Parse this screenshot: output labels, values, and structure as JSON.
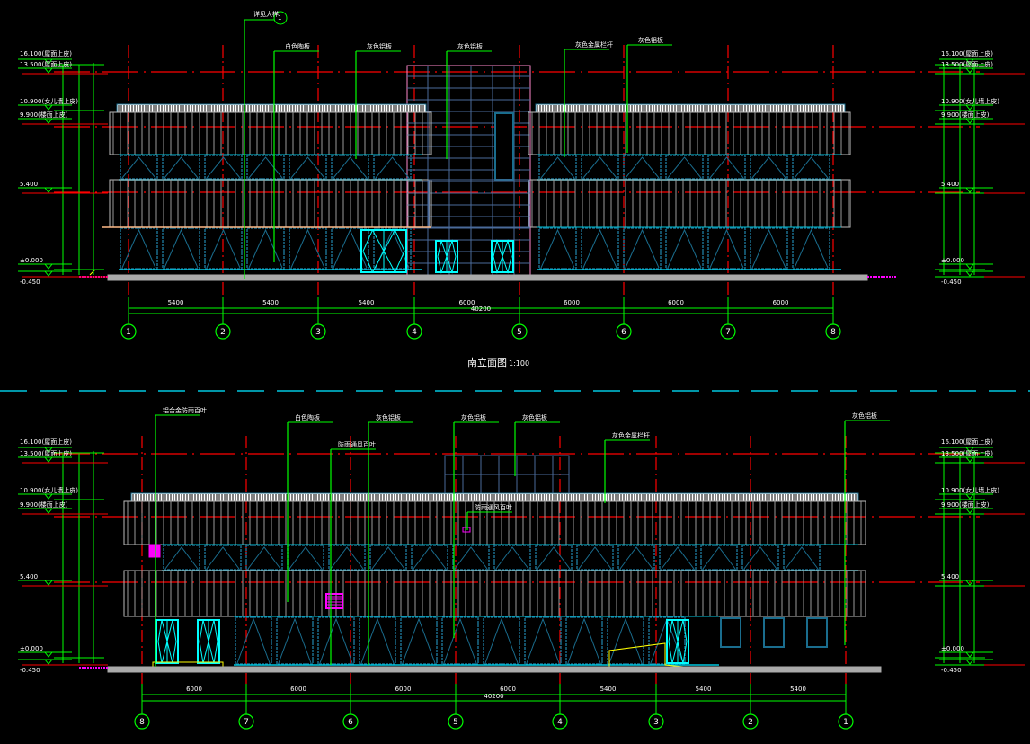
{
  "colors": {
    "background": "#000000",
    "axis": "#ff0000",
    "dimension": "#00ff00",
    "louver": "#ffffff",
    "panel": "#9a9a9a",
    "window": "#00c8e0",
    "frame": "#1a6d8e",
    "grid": "#4a6a9a",
    "tower_outline": "#ff88cc",
    "ground": "#aaaaaa",
    "door": "#00ffff",
    "step": "#ffff00",
    "vent": "#ff00ff",
    "divider": "#00c8e0"
  },
  "south_elevation": {
    "title": "南立面图",
    "scale": "1:100",
    "index_label": "详见大样",
    "index_symbol": "1",
    "axes": [
      "1",
      "2",
      "3",
      "4",
      "5",
      "6",
      "7",
      "8"
    ],
    "dims_bays": [
      "5400",
      "5400",
      "5400",
      "6000",
      "6000",
      "6000",
      "6000"
    ],
    "dim_total": "40200",
    "callouts": [
      "白色陶板",
      "灰色铝板",
      "灰色铝板",
      "灰色金属栏杆",
      "灰色铝板"
    ],
    "levels": [
      "16.100(屋面上皮)",
      "13.500(屋面上皮)",
      "10.900(女儿墙上皮)",
      "9.900(楼面上皮)",
      "5.400",
      "±0.000",
      "-0.450"
    ]
  },
  "north_elevation": {
    "axes": [
      "8",
      "7",
      "6",
      "5",
      "4",
      "3",
      "2",
      "1"
    ],
    "dims_bays": [
      "6000",
      "6000",
      "6000",
      "6000",
      "5400",
      "5400",
      "5400"
    ],
    "dim_total": "40200",
    "callouts": [
      "铝合金防雨百叶",
      "白色陶板",
      "防雨通风百叶",
      "灰色铝板",
      "灰色铝板",
      "灰色铝板",
      "灰色金属栏杆",
      "灰色铝板",
      "防雨通风百叶"
    ],
    "levels": [
      "16.100(屋面上皮)",
      "13.500(屋面上皮)",
      "10.900(女儿墙上皮)",
      "9.900(楼面上皮)",
      "5.400",
      "±0.000",
      "-0.450"
    ]
  }
}
